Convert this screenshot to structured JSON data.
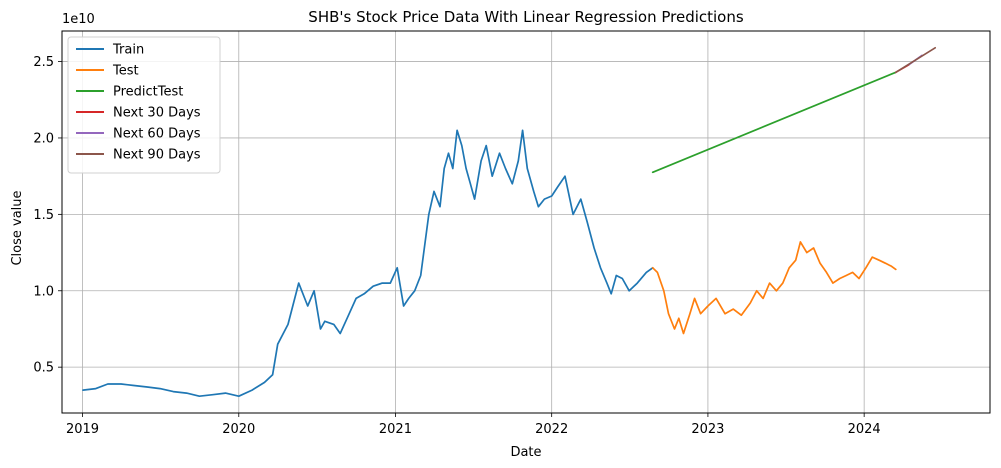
{
  "chart_data": {
    "type": "line",
    "title": "SHB's Stock Price Data With Linear Regression Predictions",
    "xlabel": "Date",
    "ylabel": "Close value",
    "y_offset_label": "1e10",
    "x_ticks": [
      "2019",
      "2020",
      "2021",
      "2022",
      "2023",
      "2024"
    ],
    "y_ticks": [
      "0.5",
      "1.0",
      "1.5",
      "2.0",
      "2.5"
    ],
    "y_tick_values": [
      0.5,
      1.0,
      1.5,
      2.0,
      2.5
    ],
    "xlim": [
      "2018-11-14",
      "2024-10-21"
    ],
    "ylim": [
      0.2,
      2.7
    ],
    "y_unit_multiplier": 10000000000.0,
    "grid": true,
    "legend_position": "top-left",
    "series": [
      {
        "name": "Train",
        "color": "#1f77b4",
        "x": [
          "2019-01-02",
          "2019-02-01",
          "2019-03-01",
          "2019-04-01",
          "2019-05-01",
          "2019-06-01",
          "2019-07-01",
          "2019-08-01",
          "2019-09-01",
          "2019-10-01",
          "2019-11-01",
          "2019-12-01",
          "2020-01-01",
          "2020-02-01",
          "2020-03-01",
          "2020-03-20",
          "2020-04-01",
          "2020-04-25",
          "2020-05-20",
          "2020-06-10",
          "2020-06-25",
          "2020-07-10",
          "2020-07-20",
          "2020-08-10",
          "2020-08-25",
          "2020-09-10",
          "2020-10-01",
          "2020-10-20",
          "2020-11-10",
          "2020-12-01",
          "2020-12-20",
          "2021-01-05",
          "2021-01-20",
          "2021-02-01",
          "2021-02-15",
          "2021-03-01",
          "2021-03-20",
          "2021-04-01",
          "2021-04-15",
          "2021-04-25",
          "2021-05-05",
          "2021-05-15",
          "2021-05-25",
          "2021-06-05",
          "2021-06-15",
          "2021-06-25",
          "2021-07-05",
          "2021-07-20",
          "2021-08-01",
          "2021-08-15",
          "2021-09-01",
          "2021-09-15",
          "2021-10-01",
          "2021-10-15",
          "2021-10-25",
          "2021-11-05",
          "2021-11-20",
          "2021-12-01",
          "2021-12-15",
          "2022-01-01",
          "2022-01-15",
          "2022-02-01",
          "2022-02-20",
          "2022-03-10",
          "2022-03-25",
          "2022-04-10",
          "2022-04-25",
          "2022-05-10",
          "2022-05-20",
          "2022-06-01",
          "2022-06-15",
          "2022-07-01",
          "2022-07-20",
          "2022-08-10",
          "2022-08-25"
        ],
        "values": [
          0.35,
          0.36,
          0.39,
          0.39,
          0.38,
          0.37,
          0.36,
          0.34,
          0.33,
          0.31,
          0.32,
          0.33,
          0.31,
          0.35,
          0.4,
          0.45,
          0.65,
          0.78,
          1.05,
          0.9,
          1.0,
          0.75,
          0.8,
          0.78,
          0.72,
          0.82,
          0.95,
          0.98,
          1.03,
          1.05,
          1.05,
          1.15,
          0.9,
          0.95,
          1.0,
          1.1,
          1.5,
          1.65,
          1.55,
          1.8,
          1.9,
          1.8,
          2.05,
          1.95,
          1.8,
          1.7,
          1.6,
          1.85,
          1.95,
          1.75,
          1.9,
          1.8,
          1.7,
          1.85,
          2.05,
          1.8,
          1.65,
          1.55,
          1.6,
          1.62,
          1.68,
          1.75,
          1.5,
          1.6,
          1.45,
          1.28,
          1.15,
          1.05,
          0.98,
          1.1,
          1.08,
          1.0,
          1.05,
          1.12,
          1.15
        ]
      },
      {
        "name": "Test",
        "color": "#ff7f0e",
        "x": [
          "2022-08-25",
          "2022-09-05",
          "2022-09-20",
          "2022-10-01",
          "2022-10-15",
          "2022-10-25",
          "2022-11-05",
          "2022-11-20",
          "2022-12-01",
          "2022-12-15",
          "2023-01-01",
          "2023-01-20",
          "2023-02-10",
          "2023-03-01",
          "2023-03-20",
          "2023-04-10",
          "2023-04-25",
          "2023-05-10",
          "2023-05-25",
          "2023-06-10",
          "2023-06-25",
          "2023-07-10",
          "2023-07-25",
          "2023-08-05",
          "2023-08-20",
          "2023-09-05",
          "2023-09-20",
          "2023-10-05",
          "2023-10-20",
          "2023-11-05",
          "2023-11-20",
          "2023-12-05",
          "2023-12-20",
          "2024-01-05",
          "2024-01-20",
          "2024-02-05",
          "2024-02-20",
          "2024-03-05",
          "2024-03-15"
        ],
        "values": [
          1.15,
          1.12,
          1.0,
          0.85,
          0.75,
          0.82,
          0.72,
          0.85,
          0.95,
          0.85,
          0.9,
          0.95,
          0.85,
          0.88,
          0.84,
          0.92,
          1.0,
          0.95,
          1.05,
          1.0,
          1.05,
          1.15,
          1.2,
          1.32,
          1.25,
          1.28,
          1.18,
          1.12,
          1.05,
          1.08,
          1.1,
          1.12,
          1.08,
          1.15,
          1.22,
          1.2,
          1.18,
          1.16,
          1.14
        ]
      },
      {
        "name": "PredictTest",
        "color": "#2ca02c",
        "x": [
          "2022-08-25",
          "2024-03-15"
        ],
        "values": [
          1.775,
          2.43
        ]
      },
      {
        "name": "Next 30 Days",
        "color": "#d62728",
        "x": [
          "2024-03-15",
          "2024-04-15"
        ],
        "values": [
          2.43,
          2.48
        ]
      },
      {
        "name": "Next 60 Days",
        "color": "#9467bd",
        "x": [
          "2024-04-15",
          "2024-05-15"
        ],
        "values": [
          2.48,
          2.54
        ]
      },
      {
        "name": "Next 90 Days",
        "color": "#8c564b",
        "x": [
          "2024-03-15",
          "2024-06-15"
        ],
        "values": [
          2.43,
          2.59
        ]
      }
    ]
  }
}
